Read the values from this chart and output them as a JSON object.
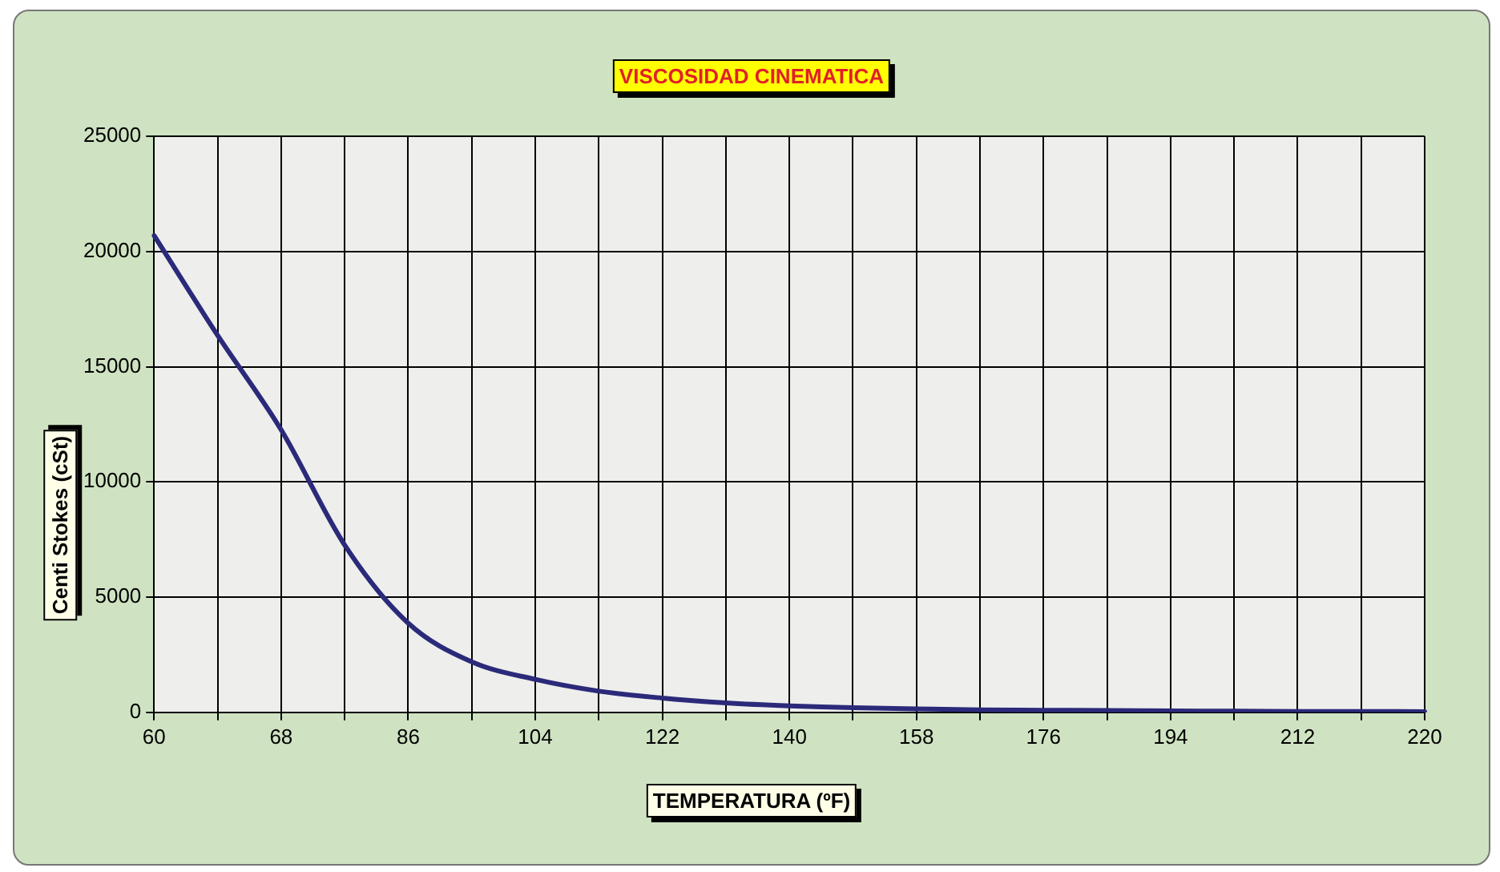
{
  "chart_data": {
    "type": "line",
    "title": "VISCOSIDAD CINEMATICA",
    "xlabel": "TEMPERATURA (ºF)",
    "ylabel": "Centi Stokes (cSt)",
    "categories": [
      "60",
      null,
      "68",
      null,
      "86",
      null,
      "104",
      null,
      "122",
      null,
      "140",
      null,
      "158",
      null,
      "176",
      null,
      "194",
      null,
      "212",
      null,
      "220"
    ],
    "series": [
      {
        "color": "#2b2a7a",
        "values": [
          20690,
          16360,
          12260,
          7260,
          3870,
          2190,
          1430,
          920,
          620,
          410,
          280,
          200,
          150,
          110,
          90,
          80,
          60,
          50,
          40,
          40,
          30
        ]
      }
    ],
    "ylim": [
      0,
      25000
    ],
    "yticks": [
      0,
      5000,
      10000,
      15000,
      20000,
      25000
    ],
    "grid": true,
    "legend": false,
    "marker": "none",
    "line_style": "solid"
  }
}
